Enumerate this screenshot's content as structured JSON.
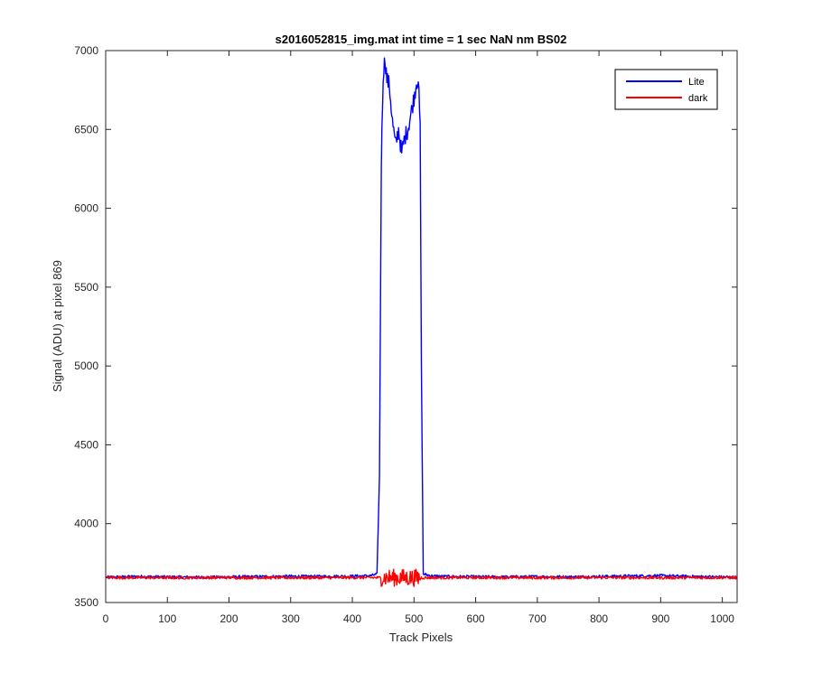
{
  "chart_data": {
    "type": "line",
    "title": "s2016052815_img.mat int time = 1 sec  NaN nm BS02",
    "xlabel": "Track Pixels",
    "ylabel": "Signal (ADU) at pixel 869",
    "xlim": [
      0,
      1024
    ],
    "ylim": [
      3500,
      7000
    ],
    "xticks": [
      0,
      100,
      200,
      300,
      400,
      500,
      600,
      700,
      800,
      900,
      1000
    ],
    "yticks": [
      3500,
      4000,
      4500,
      5000,
      5500,
      6000,
      6500,
      7000
    ],
    "grid": false,
    "legend_position": "top-right",
    "series": [
      {
        "name": "Lite",
        "color": "#0000ff",
        "x": [
          1,
          50,
          100,
          150,
          200,
          250,
          300,
          350,
          400,
          430,
          440,
          444,
          447,
          450,
          453,
          456,
          460,
          465,
          470,
          475,
          480,
          485,
          490,
          495,
          500,
          504,
          507,
          510,
          512,
          515,
          530,
          550,
          600,
          650,
          700,
          750,
          800,
          850,
          900,
          950,
          1000,
          1024
        ],
        "y": [
          3660,
          3665,
          3662,
          3660,
          3662,
          3664,
          3666,
          3665,
          3667,
          3670,
          3680,
          4300,
          6300,
          6850,
          6950,
          6820,
          6780,
          6550,
          6400,
          6500,
          6350,
          6450,
          6500,
          6600,
          6700,
          6800,
          6820,
          6500,
          5000,
          3680,
          3668,
          3665,
          3663,
          3662,
          3664,
          3662,
          3665,
          3668,
          3670,
          3665,
          3662,
          3660
        ]
      },
      {
        "name": "dark",
        "color": "#ff0000",
        "x": [
          1,
          100,
          200,
          300,
          400,
          500,
          600,
          700,
          800,
          900,
          1000,
          1024
        ],
        "y": [
          3658,
          3657,
          3658,
          3657,
          3658,
          3657,
          3658,
          3657,
          3658,
          3657,
          3658,
          3657
        ]
      }
    ]
  }
}
